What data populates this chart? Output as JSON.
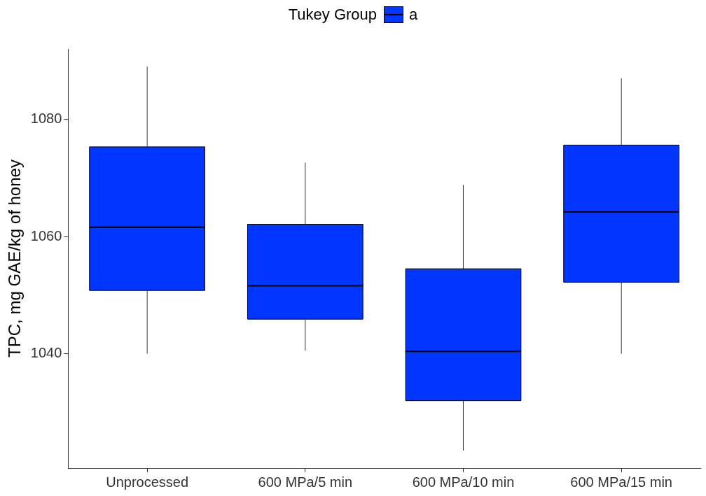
{
  "chart_data": {
    "type": "box",
    "ylabel": "TPC, mg GAE/kg of honey",
    "legend_title": "Tukey Group",
    "legend": "top",
    "grid": false,
    "categories": [
      "Unprocessed",
      "600 MPa/5 min",
      "600 MPa/10 min",
      "600 MPa/15 min"
    ],
    "ylim": [
      1020.5,
      1092
    ],
    "yticks": [
      1040,
      1060,
      1080
    ],
    "series": [
      {
        "name": "a",
        "color": "#0036ff",
        "boxes": [
          {
            "low": 1040.0,
            "q1": 1050.8,
            "median": 1061.6,
            "q3": 1075.3,
            "high": 1089.0
          },
          {
            "low": 1040.5,
            "q1": 1045.9,
            "median": 1051.6,
            "q3": 1062.1,
            "high": 1072.6
          },
          {
            "low": 1023.5,
            "q1": 1032.0,
            "median": 1040.4,
            "q3": 1054.5,
            "high": 1068.8
          },
          {
            "low": 1040.0,
            "q1": 1052.2,
            "median": 1064.2,
            "q3": 1075.6,
            "high": 1087.0
          }
        ]
      }
    ]
  }
}
